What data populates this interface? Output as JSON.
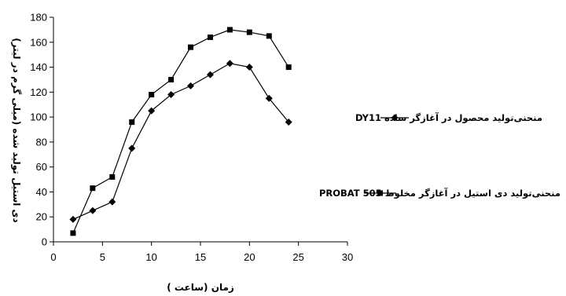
{
  "chart_data": {
    "type": "line",
    "xlabel": "زمان (ساعت )",
    "ylabel": "دی استیل تولید شده (میلی گرم در لیتر)",
    "xlim": [
      0,
      30
    ],
    "ylim": [
      0,
      180
    ],
    "xticks": [
      0,
      5,
      10,
      15,
      20,
      25,
      30
    ],
    "yticks": [
      0,
      20,
      40,
      60,
      80,
      100,
      120,
      140,
      160,
      180
    ],
    "grid": false,
    "legend_position": "right",
    "series": [
      {
        "name": "منحنی‌تولید محصول در آغازگر ساده DY11",
        "marker": "diamond",
        "color": "#000000",
        "x": [
          2,
          4,
          6,
          8,
          10,
          12,
          14,
          16,
          18,
          20,
          22,
          24
        ],
        "y": [
          18,
          25,
          32,
          75,
          105,
          118,
          125,
          134,
          143,
          140,
          115,
          96
        ]
      },
      {
        "name": "منحنی‌تولید دی استیل در آغازگر مخلوط PROBAT 505",
        "marker": "square",
        "color": "#000000",
        "x": [
          2,
          4,
          6,
          8,
          10,
          12,
          14,
          16,
          18,
          20,
          22,
          24
        ],
        "y": [
          7,
          43,
          52,
          96,
          118,
          130,
          156,
          164,
          170,
          168,
          165,
          140
        ]
      }
    ]
  }
}
